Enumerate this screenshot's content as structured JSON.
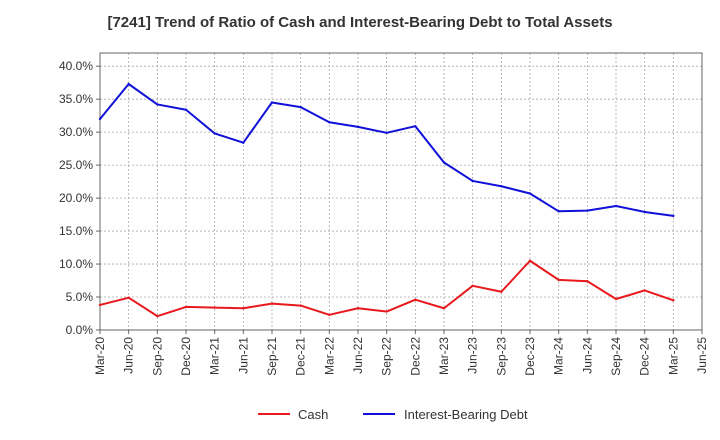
{
  "chart_data": {
    "type": "line",
    "title": "[7241]  Trend of Ratio of Cash and Interest-Bearing Debt to Total Assets",
    "xlabel": "",
    "ylabel": "",
    "x_ticks": [
      "Mar-20",
      "Jun-20",
      "Sep-20",
      "Dec-20",
      "Mar-21",
      "Jun-21",
      "Sep-21",
      "Dec-21",
      "Mar-22",
      "Jun-22",
      "Sep-22",
      "Dec-22",
      "Mar-23",
      "Jun-23",
      "Sep-23",
      "Dec-23",
      "Mar-24",
      "Jun-24",
      "Sep-24",
      "Dec-24",
      "Mar-25",
      "Jun-25"
    ],
    "y_ticks": [
      "0.0%",
      "5.0%",
      "10.0%",
      "15.0%",
      "20.0%",
      "25.0%",
      "30.0%",
      "35.0%",
      "40.0%"
    ],
    "ylim": [
      0,
      42
    ],
    "grid": true,
    "legend_position": "bottom",
    "series": [
      {
        "name": "Cash",
        "color": "#e8191d",
        "x": [
          "Mar-20",
          "Jun-20",
          "Sep-20",
          "Dec-20",
          "Mar-21",
          "Jun-21",
          "Sep-21",
          "Dec-21",
          "Mar-22",
          "Jun-22",
          "Sep-22",
          "Dec-22",
          "Mar-23",
          "Jun-23",
          "Sep-23",
          "Dec-23",
          "Mar-24",
          "Jun-24",
          "Sep-24",
          "Dec-24",
          "Mar-25"
        ],
        "values": [
          3.8,
          4.9,
          2.1,
          3.5,
          3.4,
          3.3,
          4.0,
          3.7,
          2.3,
          3.3,
          2.8,
          4.6,
          3.3,
          6.7,
          5.8,
          10.5,
          7.6,
          7.4,
          4.7,
          6.0,
          4.5
        ]
      },
      {
        "name": "Interest-Bearing Debt",
        "color": "#1010d8",
        "x": [
          "Mar-20",
          "Jun-20",
          "Sep-20",
          "Dec-20",
          "Mar-21",
          "Jun-21",
          "Sep-21",
          "Dec-21",
          "Mar-22",
          "Jun-22",
          "Sep-22",
          "Dec-22",
          "Mar-23",
          "Jun-23",
          "Sep-23",
          "Dec-23",
          "Mar-24",
          "Jun-24",
          "Sep-24",
          "Dec-24",
          "Mar-25"
        ],
        "values": [
          32.0,
          37.3,
          34.2,
          33.4,
          29.8,
          28.4,
          34.5,
          33.8,
          31.5,
          30.8,
          29.9,
          30.9,
          25.4,
          22.6,
          21.8,
          20.7,
          18.0,
          18.1,
          18.8,
          17.9,
          17.3
        ]
      }
    ]
  }
}
